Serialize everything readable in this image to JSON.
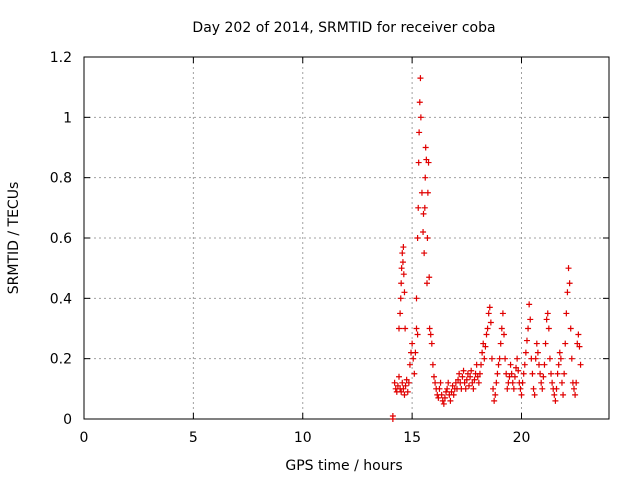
{
  "chart_data": {
    "type": "scatter",
    "title": "Day 202 of 2014, SRMTID for receiver coba",
    "xlabel": "GPS time / hours",
    "ylabel": "SRMTID / TECUs",
    "xlim": [
      0,
      24
    ],
    "ylim": [
      0,
      1.2
    ],
    "x_ticks": [
      0,
      5,
      10,
      15,
      20
    ],
    "x_tick_labels": [
      "0",
      "5",
      "10",
      "15",
      "20"
    ],
    "y_ticks": [
      0,
      0.2,
      0.4,
      0.6,
      0.8,
      1.0,
      1.2
    ],
    "y_tick_labels": [
      "0",
      "0.2",
      "0.4",
      "0.6",
      "0.8",
      "1",
      "1.2"
    ],
    "grid": true,
    "marker": "+",
    "marker_color": "#e00000",
    "series": [
      {
        "name": "SRMTID",
        "x": [
          14.12,
          14.12,
          14.2,
          14.25,
          14.3,
          14.35,
          14.4,
          14.45,
          14.5,
          14.55,
          14.6,
          14.65,
          14.7,
          14.75,
          14.8,
          14.4,
          14.45,
          14.48,
          14.5,
          14.52,
          14.55,
          14.58,
          14.6,
          14.62,
          14.65,
          14.68,
          14.85,
          14.9,
          14.95,
          15.0,
          15.05,
          15.1,
          15.15,
          15.2,
          15.25,
          15.2,
          15.25,
          15.28,
          15.3,
          15.32,
          15.35,
          15.38,
          15.4,
          15.45,
          15.5,
          15.52,
          15.55,
          15.58,
          15.6,
          15.62,
          15.65,
          15.68,
          15.7,
          15.72,
          15.75,
          15.78,
          15.8,
          15.85,
          15.9,
          15.95,
          16.0,
          16.05,
          16.1,
          16.15,
          16.2,
          16.25,
          16.3,
          16.35,
          16.4,
          16.45,
          16.5,
          16.55,
          16.6,
          16.65,
          16.7,
          16.75,
          16.8,
          16.85,
          16.9,
          16.95,
          17.0,
          17.05,
          17.1,
          17.15,
          17.2,
          17.25,
          17.3,
          17.35,
          17.4,
          17.45,
          17.5,
          17.55,
          17.6,
          17.65,
          17.7,
          17.75,
          17.8,
          17.85,
          17.9,
          17.95,
          18.0,
          18.05,
          18.1,
          18.15,
          18.2,
          18.25,
          18.3,
          18.35,
          18.4,
          18.45,
          18.5,
          18.55,
          18.6,
          18.65,
          18.7,
          18.75,
          18.8,
          18.85,
          18.9,
          18.95,
          19.0,
          19.05,
          19.1,
          19.15,
          19.2,
          19.25,
          19.3,
          19.35,
          19.4,
          19.45,
          19.5,
          19.55,
          19.6,
          19.65,
          19.7,
          19.75,
          19.8,
          19.85,
          19.9,
          19.95,
          20.0,
          20.05,
          20.1,
          20.15,
          20.2,
          20.25,
          20.3,
          20.35,
          20.4,
          20.45,
          20.5,
          20.55,
          20.6,
          20.65,
          20.7,
          20.75,
          20.8,
          20.85,
          20.9,
          20.95,
          21.0,
          21.05,
          21.1,
          21.15,
          21.2,
          21.25,
          21.3,
          21.35,
          21.4,
          21.45,
          21.5,
          21.55,
          21.6,
          21.65,
          21.7,
          21.75,
          21.8,
          21.85,
          21.9,
          21.95,
          22.0,
          22.05,
          22.1,
          22.15,
          22.2,
          22.25,
          22.3,
          22.35,
          22.4,
          22.45,
          22.5,
          22.55,
          22.6,
          22.65,
          22.7
        ],
        "y": [
          0.0,
          0.01,
          0.12,
          0.1,
          0.09,
          0.11,
          0.14,
          0.1,
          0.09,
          0.12,
          0.1,
          0.08,
          0.11,
          0.13,
          0.09,
          0.3,
          0.35,
          0.4,
          0.45,
          0.5,
          0.55,
          0.52,
          0.57,
          0.48,
          0.42,
          0.3,
          0.12,
          0.18,
          0.22,
          0.25,
          0.2,
          0.15,
          0.22,
          0.3,
          0.28,
          0.4,
          0.6,
          0.7,
          0.85,
          0.95,
          1.05,
          1.13,
          1.0,
          0.75,
          0.62,
          0.68,
          0.55,
          0.7,
          0.8,
          0.9,
          0.86,
          0.45,
          0.6,
          0.75,
          0.85,
          0.47,
          0.3,
          0.28,
          0.25,
          0.18,
          0.14,
          0.12,
          0.1,
          0.08,
          0.07,
          0.1,
          0.12,
          0.08,
          0.06,
          0.05,
          0.07,
          0.09,
          0.1,
          0.12,
          0.08,
          0.06,
          0.09,
          0.11,
          0.08,
          0.1,
          0.12,
          0.1,
          0.13,
          0.15,
          0.12,
          0.1,
          0.14,
          0.16,
          0.12,
          0.1,
          0.13,
          0.15,
          0.11,
          0.14,
          0.16,
          0.12,
          0.1,
          0.13,
          0.15,
          0.18,
          0.14,
          0.12,
          0.15,
          0.18,
          0.22,
          0.25,
          0.2,
          0.24,
          0.28,
          0.3,
          0.35,
          0.37,
          0.32,
          0.2,
          0.1,
          0.06,
          0.08,
          0.12,
          0.15,
          0.18,
          0.2,
          0.25,
          0.3,
          0.35,
          0.28,
          0.2,
          0.15,
          0.1,
          0.12,
          0.14,
          0.18,
          0.15,
          0.12,
          0.1,
          0.14,
          0.17,
          0.2,
          0.16,
          0.12,
          0.1,
          0.08,
          0.12,
          0.15,
          0.18,
          0.22,
          0.26,
          0.3,
          0.38,
          0.33,
          0.2,
          0.15,
          0.1,
          0.08,
          0.2,
          0.25,
          0.22,
          0.18,
          0.15,
          0.12,
          0.1,
          0.14,
          0.18,
          0.25,
          0.33,
          0.35,
          0.3,
          0.2,
          0.15,
          0.12,
          0.1,
          0.08,
          0.06,
          0.1,
          0.15,
          0.18,
          0.22,
          0.2,
          0.12,
          0.08,
          0.15,
          0.25,
          0.35,
          0.42,
          0.5,
          0.45,
          0.3,
          0.2,
          0.12,
          0.1,
          0.08,
          0.12,
          0.25,
          0.28,
          0.24,
          0.18
        ]
      }
    ]
  }
}
